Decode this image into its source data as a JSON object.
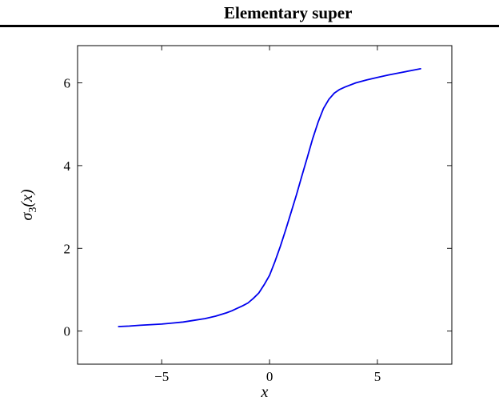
{
  "header": {
    "title": "Elementary super"
  },
  "chart_data": {
    "type": "line",
    "title": "",
    "xlabel": "x",
    "ylabel": {
      "base": "σ",
      "sub": "3",
      "rest": "(x)"
    },
    "xlim": [
      -8.9,
      8.45
    ],
    "ylim": [
      -0.8,
      6.9
    ],
    "xticks": [
      -5,
      0,
      5
    ],
    "yticks": [
      0,
      2,
      4,
      6
    ],
    "grid": false,
    "legend": null,
    "axis_color": "#000000",
    "curve_color": "#0000ee",
    "series": [
      {
        "name": "sigma_3",
        "x": [
          -7,
          -6.5,
          -6,
          -5.5,
          -5,
          -4.5,
          -4,
          -3.5,
          -3,
          -2.5,
          -2,
          -1.75,
          -1.5,
          -1.25,
          -1,
          -0.75,
          -0.5,
          -0.25,
          0,
          0.25,
          0.5,
          0.75,
          1,
          1.25,
          1.5,
          1.75,
          2,
          2.25,
          2.5,
          2.75,
          3,
          3.25,
          3.5,
          4,
          4.5,
          5,
          5.5,
          6,
          6.5,
          7
        ],
        "y": [
          0.11,
          0.12,
          0.14,
          0.155,
          0.17,
          0.195,
          0.22,
          0.26,
          0.3,
          0.36,
          0.44,
          0.49,
          0.55,
          0.61,
          0.68,
          0.79,
          0.92,
          1.12,
          1.35,
          1.68,
          2.05,
          2.45,
          2.87,
          3.3,
          3.75,
          4.2,
          4.65,
          5.05,
          5.38,
          5.6,
          5.75,
          5.84,
          5.9,
          6.0,
          6.07,
          6.13,
          6.19,
          6.24,
          6.29,
          6.34
        ]
      }
    ]
  }
}
